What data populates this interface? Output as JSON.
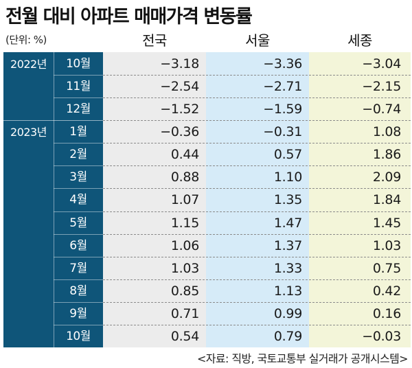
{
  "title": "전월 대비 아파트 매매가격 변동률",
  "unit": "(단위: %)",
  "source": "<자료: 직방, 국토교통부 실거래가 공개시스템>",
  "colors": {
    "header_panel": "#0f5579",
    "national_bg": "#ececec",
    "seoul_bg": "#d6ebf8",
    "sejong_bg": "#f3f5d9"
  },
  "chart_data": {
    "type": "table",
    "columns": [
      "전국",
      "서울",
      "세종"
    ],
    "year_groups": [
      {
        "label": "2022년",
        "months": [
          "10월",
          "11월",
          "12월"
        ]
      },
      {
        "label": "2023년",
        "months": [
          "1월",
          "2월",
          "3월",
          "4월",
          "5월",
          "6월",
          "7월",
          "8월",
          "9월",
          "10월"
        ]
      }
    ],
    "rows": [
      {
        "year": "2022년",
        "month": "10월",
        "values": [
          "−3.18",
          "−3.36",
          "−3.04"
        ]
      },
      {
        "year": "2022년",
        "month": "11월",
        "values": [
          "−2.54",
          "−2.71",
          "−2.15"
        ]
      },
      {
        "year": "2022년",
        "month": "12월",
        "values": [
          "−1.52",
          "−1.59",
          "−0.74"
        ]
      },
      {
        "year": "2023년",
        "month": "1월",
        "values": [
          "−0.36",
          "−0.31",
          "1.08"
        ]
      },
      {
        "year": "2023년",
        "month": "2월",
        "values": [
          "0.44",
          "0.57",
          "1.86"
        ]
      },
      {
        "year": "2023년",
        "month": "3월",
        "values": [
          "0.88",
          "1.10",
          "2.09"
        ]
      },
      {
        "year": "2023년",
        "month": "4월",
        "values": [
          "1.07",
          "1.35",
          "1.84"
        ]
      },
      {
        "year": "2023년",
        "month": "5월",
        "values": [
          "1.15",
          "1.47",
          "1.45"
        ]
      },
      {
        "year": "2023년",
        "month": "6월",
        "values": [
          "1.06",
          "1.37",
          "1.03"
        ]
      },
      {
        "year": "2023년",
        "month": "7월",
        "values": [
          "1.03",
          "1.33",
          "0.75"
        ]
      },
      {
        "year": "2023년",
        "month": "8월",
        "values": [
          "0.85",
          "1.13",
          "0.42"
        ]
      },
      {
        "year": "2023년",
        "month": "9월",
        "values": [
          "0.71",
          "0.99",
          "0.16"
        ]
      },
      {
        "year": "2023년",
        "month": "10월",
        "values": [
          "0.54",
          "0.79",
          "−0.03"
        ]
      }
    ]
  }
}
